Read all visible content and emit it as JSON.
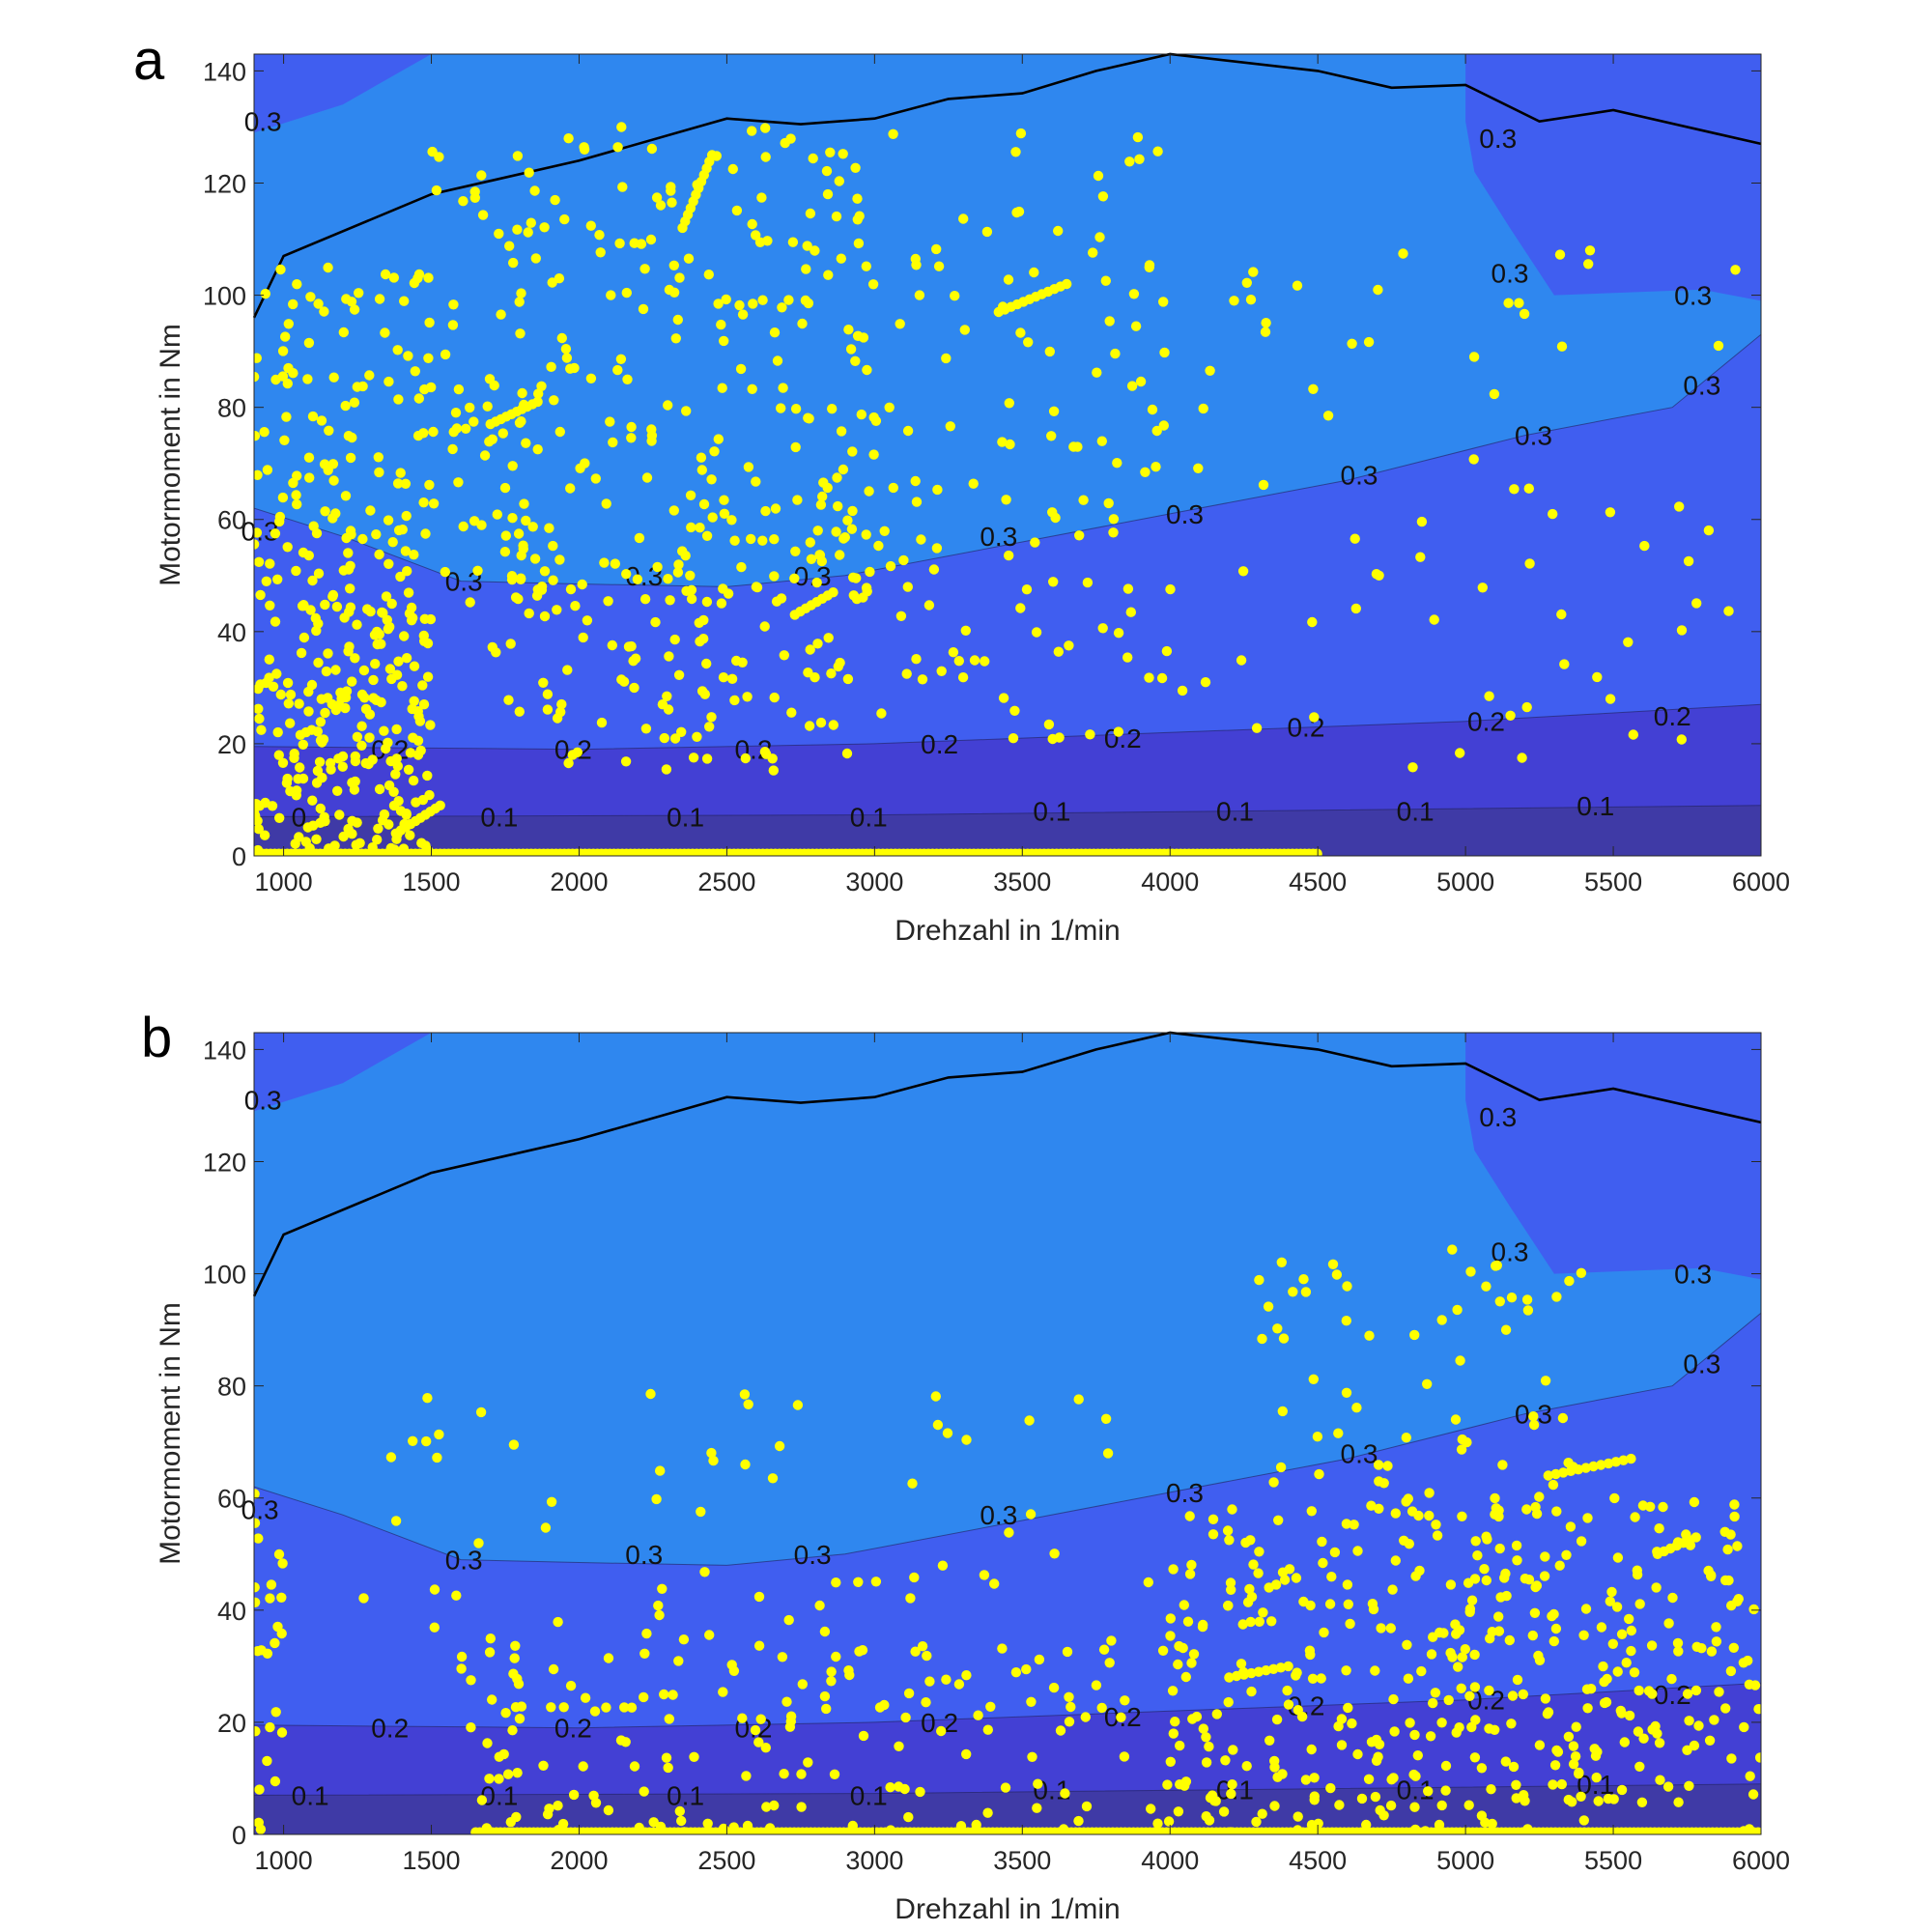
{
  "chart_data": [
    {
      "type": "scatter",
      "panel_label": "a",
      "xlabel": "Drehzahl in 1/min",
      "ylabel": "Motormoment in Nm",
      "xlim": [
        900,
        6000
      ],
      "ylim": [
        0,
        143
      ],
      "xticks": [
        1000,
        1500,
        2000,
        2500,
        3000,
        3500,
        4000,
        4500,
        5000,
        5500,
        6000
      ],
      "yticks": [
        0,
        20,
        40,
        60,
        80,
        100,
        120,
        140
      ],
      "grid": false,
      "background": "filled contour map of efficiency with levels 0.1, 0.2, 0.3",
      "contour_levels": [
        0.1,
        0.2,
        0.3
      ],
      "contour_labels": [
        {
          "text": "0.3",
          "x": 930,
          "y": 131
        },
        {
          "text": "0.3",
          "x": 5110,
          "y": 128
        },
        {
          "text": "0.3",
          "x": 5150,
          "y": 104
        },
        {
          "text": "0.3",
          "x": 5770,
          "y": 100
        },
        {
          "text": "0.3",
          "x": 5800,
          "y": 84
        },
        {
          "text": "0.3",
          "x": 5230,
          "y": 75
        },
        {
          "text": "0.3",
          "x": 4640,
          "y": 68
        },
        {
          "text": "0.3",
          "x": 4050,
          "y": 61
        },
        {
          "text": "0.3",
          "x": 3420,
          "y": 57
        },
        {
          "text": "0.3",
          "x": 2790,
          "y": 50
        },
        {
          "text": "0.3",
          "x": 2220,
          "y": 50
        },
        {
          "text": "0.3",
          "x": 1610,
          "y": 49
        },
        {
          "text": "0.3",
          "x": 920,
          "y": 58
        },
        {
          "text": "0.2",
          "x": 1360,
          "y": 19
        },
        {
          "text": "0.2",
          "x": 1980,
          "y": 19
        },
        {
          "text": "0.2",
          "x": 2590,
          "y": 19
        },
        {
          "text": "0.2",
          "x": 3220,
          "y": 20
        },
        {
          "text": "0.2",
          "x": 3840,
          "y": 21
        },
        {
          "text": "0.2",
          "x": 4460,
          "y": 23
        },
        {
          "text": "0.2",
          "x": 5070,
          "y": 24
        },
        {
          "text": "0.2",
          "x": 5700,
          "y": 25
        },
        {
          "text": "0.1",
          "x": 1090,
          "y": 7
        },
        {
          "text": "0.1",
          "x": 1730,
          "y": 7
        },
        {
          "text": "0.1",
          "x": 2360,
          "y": 7
        },
        {
          "text": "0.1",
          "x": 2980,
          "y": 7
        },
        {
          "text": "0.1",
          "x": 3600,
          "y": 8
        },
        {
          "text": "0.1",
          "x": 4220,
          "y": 8
        },
        {
          "text": "0.1",
          "x": 4830,
          "y": 8
        },
        {
          "text": "0.1",
          "x": 5440,
          "y": 9
        }
      ],
      "full_load_curve": [
        {
          "x": 900,
          "y": 96
        },
        {
          "x": 1000,
          "y": 107
        },
        {
          "x": 1500,
          "y": 118
        },
        {
          "x": 2000,
          "y": 124
        },
        {
          "x": 2500,
          "y": 131.5
        },
        {
          "x": 2750,
          "y": 130.5
        },
        {
          "x": 3000,
          "y": 131.5
        },
        {
          "x": 3250,
          "y": 135
        },
        {
          "x": 3500,
          "y": 136
        },
        {
          "x": 3750,
          "y": 140
        },
        {
          "x": 4000,
          "y": 143
        },
        {
          "x": 4500,
          "y": 140
        },
        {
          "x": 4750,
          "y": 137
        },
        {
          "x": 5000,
          "y": 137.5
        },
        {
          "x": 5250,
          "y": 131
        },
        {
          "x": 5500,
          "y": 133
        },
        {
          "x": 6000,
          "y": 127
        }
      ],
      "series": [
        {
          "marker_color": "#ffff00",
          "clusters": [
            {
              "x": [
                900,
                1500
              ],
              "y": [
                0,
                45
              ],
              "n": 220,
              "seed": 11
            },
            {
              "x": [
                900,
                1500
              ],
              "y": [
                40,
                105
              ],
              "n": 140,
              "seed": 12
            },
            {
              "x": [
                1500,
                3000
              ],
              "y": [
                45,
                130
              ],
              "n": 280,
              "seed": 13
            },
            {
              "x": [
                1700,
                3000
              ],
              "y": [
                15,
                60
              ],
              "n": 110,
              "seed": 14
            },
            {
              "x": [
                3000,
                4000
              ],
              "y": [
                20,
                130
              ],
              "n": 120,
              "seed": 15
            },
            {
              "x": [
                4000,
                6000
              ],
              "y": [
                15,
                110
              ],
              "n": 70,
              "seed": 16
            },
            {
              "x": [
                1500,
                6000
              ],
              "y": [
                0,
                0
              ],
              "n": 0,
              "seed": 17
            }
          ],
          "streaks": [
            {
              "x0": 2350,
              "y0": 112,
              "x1": 2450,
              "y1": 125,
              "n": 12
            },
            {
              "x0": 3420,
              "y0": 97,
              "x1": 3650,
              "y1": 102,
              "n": 12
            },
            {
              "x0": 2730,
              "y0": 43,
              "x1": 2860,
              "y1": 47,
              "n": 8
            },
            {
              "x0": 1380,
              "y0": 4,
              "x1": 1530,
              "y1": 9,
              "n": 10
            },
            {
              "x0": 1700,
              "y0": 77,
              "x1": 1860,
              "y1": 81,
              "n": 10
            }
          ],
          "zero_line_x": [
            900,
            4500
          ]
        }
      ]
    },
    {
      "type": "scatter",
      "panel_label": "b",
      "xlabel": "Drehzahl in 1/min",
      "ylabel": "Motormoment in Nm",
      "xlim": [
        900,
        6000
      ],
      "ylim": [
        0,
        143
      ],
      "xticks": [
        1000,
        1500,
        2000,
        2500,
        3000,
        3500,
        4000,
        4500,
        5000,
        5500,
        6000
      ],
      "yticks": [
        0,
        20,
        40,
        60,
        80,
        100,
        120,
        140
      ],
      "grid": false,
      "background": "filled contour map of efficiency with levels 0.1, 0.2, 0.3",
      "contour_levels": [
        0.1,
        0.2,
        0.3
      ],
      "contour_labels": [
        {
          "text": "0.3",
          "x": 930,
          "y": 131
        },
        {
          "text": "0.3",
          "x": 5110,
          "y": 128
        },
        {
          "text": "0.3",
          "x": 5150,
          "y": 104
        },
        {
          "text": "0.3",
          "x": 5770,
          "y": 100
        },
        {
          "text": "0.3",
          "x": 5800,
          "y": 84
        },
        {
          "text": "0.3",
          "x": 5230,
          "y": 75
        },
        {
          "text": "0.3",
          "x": 4640,
          "y": 68
        },
        {
          "text": "0.3",
          "x": 4050,
          "y": 61
        },
        {
          "text": "0.3",
          "x": 3420,
          "y": 57
        },
        {
          "text": "0.3",
          "x": 2790,
          "y": 50
        },
        {
          "text": "0.3",
          "x": 2220,
          "y": 50
        },
        {
          "text": "0.3",
          "x": 1610,
          "y": 49
        },
        {
          "text": "0.3",
          "x": 920,
          "y": 58
        },
        {
          "text": "0.2",
          "x": 1360,
          "y": 19
        },
        {
          "text": "0.2",
          "x": 1980,
          "y": 19
        },
        {
          "text": "0.2",
          "x": 2590,
          "y": 19
        },
        {
          "text": "0.2",
          "x": 3220,
          "y": 20
        },
        {
          "text": "0.2",
          "x": 3840,
          "y": 21
        },
        {
          "text": "0.2",
          "x": 4460,
          "y": 23
        },
        {
          "text": "0.2",
          "x": 5070,
          "y": 24
        },
        {
          "text": "0.2",
          "x": 5700,
          "y": 25
        },
        {
          "text": "0.1",
          "x": 1090,
          "y": 7
        },
        {
          "text": "0.1",
          "x": 1730,
          "y": 7
        },
        {
          "text": "0.1",
          "x": 2360,
          "y": 7
        },
        {
          "text": "0.1",
          "x": 2980,
          "y": 7
        },
        {
          "text": "0.1",
          "x": 3600,
          "y": 8
        },
        {
          "text": "0.1",
          "x": 4220,
          "y": 8
        },
        {
          "text": "0.1",
          "x": 4830,
          "y": 8
        },
        {
          "text": "0.1",
          "x": 5440,
          "y": 9
        }
      ],
      "full_load_curve": [
        {
          "x": 900,
          "y": 96
        },
        {
          "x": 1000,
          "y": 107
        },
        {
          "x": 1500,
          "y": 118
        },
        {
          "x": 2000,
          "y": 124
        },
        {
          "x": 2500,
          "y": 131.5
        },
        {
          "x": 2750,
          "y": 130.5
        },
        {
          "x": 3000,
          "y": 131.5
        },
        {
          "x": 3250,
          "y": 135
        },
        {
          "x": 3500,
          "y": 136
        },
        {
          "x": 3750,
          "y": 140
        },
        {
          "x": 4000,
          "y": 143
        },
        {
          "x": 4500,
          "y": 140
        },
        {
          "x": 4750,
          "y": 137
        },
        {
          "x": 5000,
          "y": 137.5
        },
        {
          "x": 5250,
          "y": 131
        },
        {
          "x": 5500,
          "y": 133
        },
        {
          "x": 6000,
          "y": 127
        }
      ],
      "series": [
        {
          "marker_color": "#ffff00",
          "clusters": [
            {
              "x": [
                4000,
                6000
              ],
              "y": [
                0,
                60
              ],
              "n": 420,
              "seed": 21
            },
            {
              "x": [
                4300,
                5400
              ],
              "y": [
                60,
                105
              ],
              "n": 60,
              "seed": 22
            },
            {
              "x": [
                1600,
                4000
              ],
              "y": [
                0,
                35
              ],
              "n": 170,
              "seed": 23
            },
            {
              "x": [
                1200,
                4000
              ],
              "y": [
                35,
                80
              ],
              "n": 60,
              "seed": 24
            },
            {
              "x": [
                900,
                1000
              ],
              "y": [
                0,
                62
              ],
              "n": 25,
              "seed": 25
            }
          ],
          "streaks": [
            {
              "x0": 5280,
              "y0": 64,
              "x1": 5560,
              "y1": 67,
              "n": 12
            },
            {
              "x0": 4200,
              "y0": 28,
              "x1": 4400,
              "y1": 30,
              "n": 9
            },
            {
              "x0": 5650,
              "y0": 50,
              "x1": 5780,
              "y1": 53,
              "n": 7
            }
          ],
          "zero_line_x": [
            1650,
            6000
          ]
        }
      ]
    }
  ]
}
